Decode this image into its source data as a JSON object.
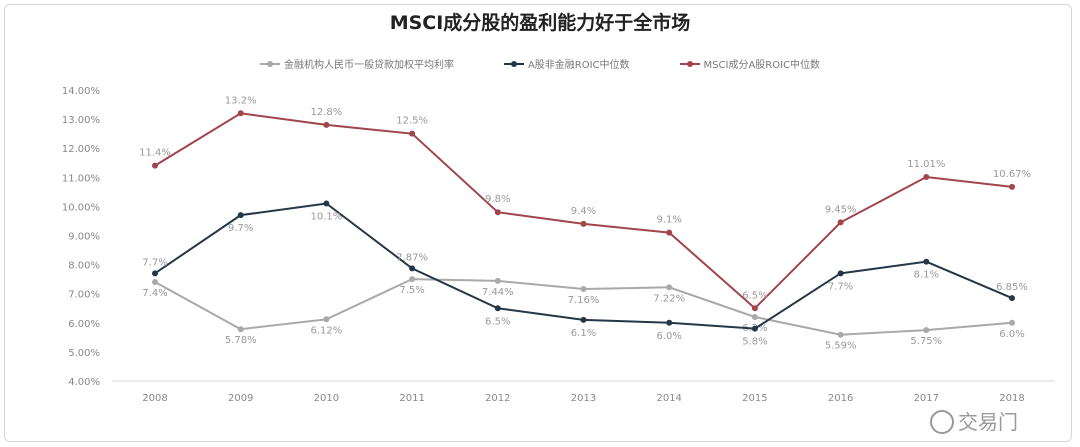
{
  "chart_data": {
    "type": "line",
    "title": "MSCI成分股的盈利能力好于全市场",
    "categories": [
      "2008",
      "2009",
      "2010",
      "2011",
      "2012",
      "2013",
      "2014",
      "2015",
      "2016",
      "2017",
      "2018"
    ],
    "ylim": [
      4,
      14
    ],
    "yticks": [
      "4.00%",
      "5.00%",
      "6.00%",
      "7.00%",
      "8.00%",
      "9.00%",
      "10.00%",
      "11.00%",
      "12.00%",
      "13.00%",
      "14.00%"
    ],
    "grid": false,
    "legend_position": "top",
    "series": [
      {
        "name": "金融机构人民币一般贷款加权平均利率",
        "color": "#a9a9a9",
        "values": [
          7.4,
          5.78,
          6.12,
          7.5,
          7.44,
          7.16,
          7.22,
          6.2,
          5.59,
          5.75,
          6.0
        ],
        "labels": [
          "7.4%",
          "5.78%",
          "6.12%",
          "7.5%",
          "7.44%",
          "7.16%",
          "7.22%",
          "6.2%",
          "5.59%",
          "5.75%",
          "6.0%"
        ]
      },
      {
        "name": "A股非金融ROIC中位数",
        "color": "#243746",
        "values": [
          7.7,
          9.7,
          10.1,
          7.87,
          6.5,
          6.1,
          6.0,
          5.8,
          7.7,
          8.1,
          6.85
        ],
        "labels": [
          "7.7%",
          "9.7%",
          "10.1%",
          "7.87%",
          "6.5%",
          "6.1%",
          "6.0%",
          "5.8%",
          "7.7%",
          "8.1%",
          "6.85%"
        ]
      },
      {
        "name": "MSCI成分A股ROIC中位数",
        "color": "#a0454b",
        "values": [
          11.4,
          13.2,
          12.8,
          12.5,
          9.8,
          9.4,
          9.1,
          6.5,
          9.45,
          11.01,
          10.67
        ],
        "labels": [
          "11.4%",
          "13.2%",
          "12.8%",
          "12.5%",
          "9.8%",
          "9.4%",
          "9.1%",
          "6.5%",
          "9.45%",
          "11.01%",
          "10.67%"
        ]
      }
    ]
  },
  "watermark": "交易门"
}
